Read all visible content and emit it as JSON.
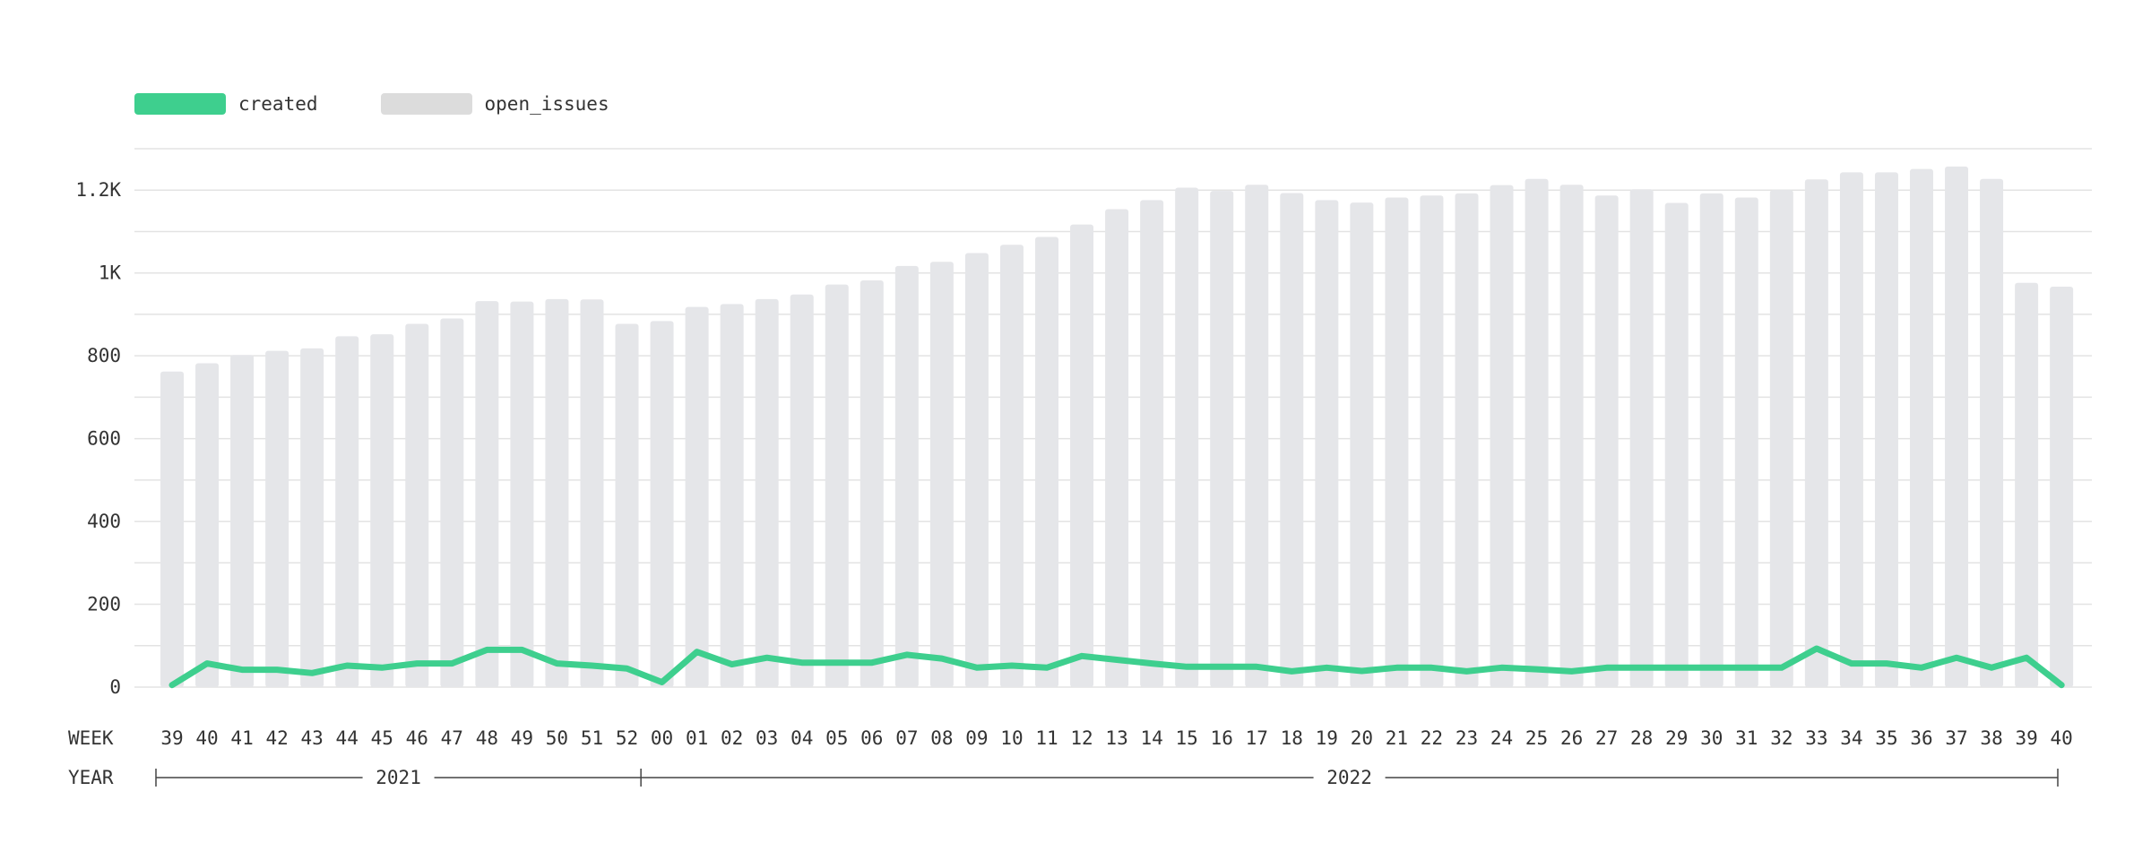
{
  "legend": {
    "items": [
      {
        "label": "created",
        "color": "#3ecf8e"
      },
      {
        "label": "open_issues",
        "color": "#dcdcdc"
      }
    ]
  },
  "axis": {
    "week_label": "WEEK",
    "year_label": "YEAR",
    "years": [
      {
        "label": "2021",
        "start_index": 0,
        "end_index": 13
      },
      {
        "label": "2022",
        "start_index": 14,
        "end_index": 54
      }
    ]
  },
  "colors": {
    "created_line": "#3ecf8e",
    "open_issues_bar": "#e5e6e9",
    "grid": "#e3e3e3",
    "axis_text": "#333333"
  },
  "chart_data": {
    "type": "bar",
    "x": [
      "39",
      "40",
      "41",
      "42",
      "43",
      "44",
      "45",
      "46",
      "47",
      "48",
      "49",
      "50",
      "51",
      "52",
      "00",
      "01",
      "02",
      "03",
      "04",
      "05",
      "06",
      "07",
      "08",
      "09",
      "10",
      "11",
      "12",
      "13",
      "14",
      "15",
      "16",
      "17",
      "18",
      "19",
      "20",
      "21",
      "22",
      "23",
      "24",
      "25",
      "26",
      "27",
      "28",
      "29",
      "30",
      "31",
      "32",
      "33",
      "34",
      "35",
      "36",
      "37",
      "38",
      "39",
      "40"
    ],
    "ylim": [
      0,
      1300
    ],
    "y_ticks": [
      0,
      200,
      400,
      600,
      800,
      1000,
      1200
    ],
    "y_tick_labels": [
      "0",
      "200",
      "400",
      "600",
      "800",
      "1K",
      "1.2K"
    ],
    "grid": true,
    "legend_position": "top-left",
    "series": [
      {
        "name": "open_issues",
        "type": "bar",
        "values": [
          762,
          782,
          802,
          812,
          818,
          847,
          852,
          877,
          890,
          932,
          931,
          937,
          936,
          877,
          884,
          918,
          925,
          937,
          948,
          972,
          982,
          1017,
          1027,
          1048,
          1068,
          1087,
          1117,
          1154,
          1176,
          1206,
          1198,
          1213,
          1193,
          1176,
          1170,
          1182,
          1187,
          1192,
          1212,
          1227,
          1213,
          1187,
          1202,
          1169,
          1192,
          1182,
          1200,
          1226,
          1243,
          1243,
          1251,
          1257,
          1227,
          976,
          967
        ]
      },
      {
        "name": "created",
        "type": "line",
        "values": [
          5,
          57,
          42,
          42,
          34,
          52,
          47,
          57,
          57,
          90,
          90,
          57,
          52,
          45,
          12,
          85,
          55,
          71,
          59,
          59,
          59,
          78,
          69,
          47,
          52,
          47,
          75,
          66,
          57,
          49,
          49,
          49,
          38,
          47,
          39,
          47,
          47,
          38,
          47,
          43,
          38,
          47,
          47,
          47,
          47,
          47,
          47,
          93,
          57,
          57,
          47,
          71,
          47,
          71,
          5
        ]
      }
    ]
  }
}
